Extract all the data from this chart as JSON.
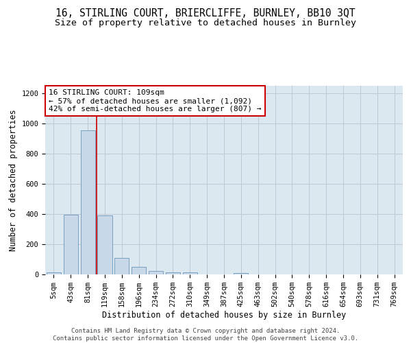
{
  "title_line1": "16, STIRLING COURT, BRIERCLIFFE, BURNLEY, BB10 3QT",
  "title_line2": "Size of property relative to detached houses in Burnley",
  "xlabel": "Distribution of detached houses by size in Burnley",
  "ylabel": "Number of detached properties",
  "categories": [
    "5sqm",
    "43sqm",
    "81sqm",
    "119sqm",
    "158sqm",
    "196sqm",
    "234sqm",
    "272sqm",
    "310sqm",
    "349sqm",
    "387sqm",
    "425sqm",
    "463sqm",
    "502sqm",
    "540sqm",
    "578sqm",
    "616sqm",
    "654sqm",
    "693sqm",
    "731sqm",
    "769sqm"
  ],
  "values": [
    12,
    395,
    955,
    390,
    107,
    50,
    25,
    13,
    12,
    0,
    0,
    10,
    0,
    0,
    0,
    0,
    0,
    0,
    0,
    0,
    0
  ],
  "bar_color": "#c8d8e8",
  "bar_edge_color": "#5888b0",
  "grid_color": "#c0c8d8",
  "background_color": "#dce8f0",
  "property_line_x": 2.5,
  "annotation_text": "16 STIRLING COURT: 109sqm\n← 57% of detached houses are smaller (1,092)\n42% of semi-detached houses are larger (807) →",
  "annotation_box_color": "#ffffff",
  "annotation_box_edge": "#cc0000",
  "vline_color": "#cc0000",
  "ylim": [
    0,
    1250
  ],
  "yticks": [
    0,
    200,
    400,
    600,
    800,
    1000,
    1200
  ],
  "footnote": "Contains HM Land Registry data © Crown copyright and database right 2024.\nContains public sector information licensed under the Open Government Licence v3.0.",
  "title_fontsize": 10.5,
  "subtitle_fontsize": 9.5,
  "axis_label_fontsize": 8.5,
  "tick_fontsize": 7.5,
  "annotation_fontsize": 8,
  "footnote_fontsize": 6.5
}
